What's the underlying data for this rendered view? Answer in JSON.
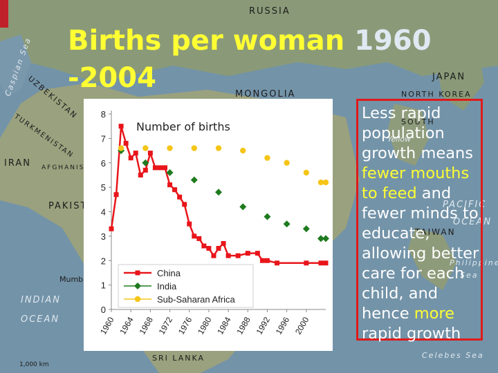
{
  "slide": {
    "title_main": "Births per woman",
    "title_year_a": "1960",
    "title_year_b": "-2004",
    "text_parts": {
      "p1": "Less rapid population growth means",
      "h1": "fewer mouths to feed",
      "p2": "and fewer minds to educate, allowing better care for each child, and hence",
      "h2": "more",
      "p3": "rapid growth"
    }
  },
  "map_labels": [
    "RUSSIA",
    "MONGOLIA",
    "JAPAN",
    "IRAN",
    "AFGHANISTAN",
    "PAKISTAN",
    "INDIAN",
    "OCEAN",
    "SRI LANKA",
    "NORTH KOREA",
    "SOUTH",
    "PACIFIC",
    "OCEAN",
    "TAIWAN",
    "Philippine",
    "Sea",
    "Celebes Sea",
    "Caspian Sea",
    "UZBEKISTAN",
    "TURKMENISTAN",
    "Mumbai",
    "1,000 km",
    "Yellow"
  ],
  "colors": {
    "china": "#e8151a",
    "india": "#1e7b1e",
    "africa": "#f5c518",
    "title": "#ffff33",
    "box": "#e01a1a"
  },
  "chart_data": {
    "type": "line",
    "annotation": "Number of births",
    "x_ticks": [
      1960,
      1964,
      1968,
      1972,
      1976,
      1980,
      1984,
      1988,
      1992,
      1996,
      2000
    ],
    "y_ticks": [
      0,
      1,
      2,
      3,
      4,
      5,
      6,
      7,
      8
    ],
    "xlim": [
      1960,
      2004
    ],
    "ylim": [
      0,
      8
    ],
    "legend_position": "bottom-left",
    "grid": false,
    "series": [
      {
        "name": "China",
        "marker": "square",
        "line": true,
        "x": [
          1960,
          1961,
          1962,
          1963,
          1964,
          1965,
          1966,
          1967,
          1968,
          1969,
          1970,
          1971,
          1972,
          1973,
          1974,
          1975,
          1976,
          1977,
          1978,
          1979,
          1980,
          1981,
          1982,
          1983,
          1984,
          1986,
          1988,
          1990,
          1991,
          1992,
          1994,
          2000,
          2003,
          2004
        ],
        "y": [
          3.3,
          4.7,
          7.5,
          6.8,
          6.2,
          6.4,
          5.5,
          5.7,
          6.4,
          5.8,
          5.8,
          5.8,
          5.1,
          4.9,
          4.6,
          4.3,
          3.5,
          3.0,
          2.9,
          2.6,
          2.5,
          2.2,
          2.5,
          2.7,
          2.2,
          2.2,
          2.3,
          2.3,
          2.0,
          2.0,
          1.9,
          1.9,
          1.9,
          1.9
        ]
      },
      {
        "name": "India",
        "marker": "diamond",
        "line": false,
        "x": [
          1962,
          1967,
          1972,
          1977,
          1982,
          1987,
          1992,
          1996,
          2000,
          2003,
          2004
        ],
        "y": [
          6.5,
          6.0,
          5.6,
          5.3,
          4.8,
          4.2,
          3.8,
          3.5,
          3.3,
          2.9,
          2.9
        ]
      },
      {
        "name": "Sub-Saharan Africa",
        "marker": "circle",
        "line": false,
        "x": [
          1962,
          1967,
          1972,
          1977,
          1982,
          1987,
          1992,
          1996,
          2000,
          2003,
          2004
        ],
        "y": [
          6.6,
          6.6,
          6.6,
          6.6,
          6.6,
          6.5,
          6.2,
          6.0,
          5.6,
          5.2,
          5.2
        ]
      }
    ]
  }
}
